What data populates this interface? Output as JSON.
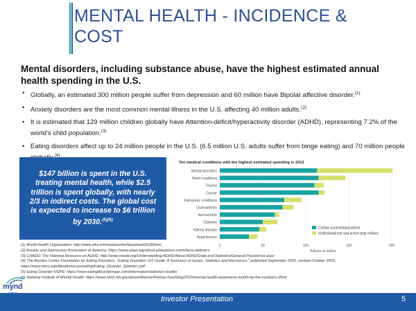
{
  "slide": {
    "title": "MENTAL HEALTH - INCIDENCE & COST",
    "subtitle": "Mental disorders, including substance abuse, have the highest estimated annual health spending in the U.S."
  },
  "bullets": [
    {
      "text": "Globally, an estimated 300 million people suffer from depression and 60 million have Bipolar affective disorder.",
      "ref": "(1)"
    },
    {
      "text": "Anxiety disorders are the most common mental illness in the U.S. affecting 40 million adults.",
      "ref": "(2)"
    },
    {
      "text": "It is estimated that 129 million children globally have Attention-deficit/hyperactivity disorder (ADHD), representing 7.2% of the world’s child population.",
      "ref": "(3)"
    },
    {
      "text": "Eating disorders affect up to 24 million people in the U.S. (6.5 million U.S. adults suffer from binge eating) and 70 million people globally.",
      "ref": "(4)"
    }
  ],
  "callout": {
    "text": "$147 billion is spent in the U.S. treating mental health, while $2.5 trillion is spent globally, with nearly 2/3 in indirect costs.  The global cost is expected to increase to $6 trillion by 2030.",
    "ref": "(5)(6)"
  },
  "footnotes": [
    "(1)  World Health Organization: http://www.who.int/mediacentre/factsheets/fs396/en/",
    "(2)  Anxiety and Depression Association of America: https://www.adaa.org/about-adaa/press-room/facts-statistics",
    "(3)  CHADD: The National Resource on ADHD. http://www.chadd.org/Understanding-ADHD/About-ADHD/Data-and-Statistics/General-Prevalence.aspx",
    "(4)  The Renfew Center Foundation for Eating Disorders, \"Eating Disorders 101 Guide: A Summary of Issues, Statistics and Resources,\" published September 2002, revised October 2003.",
    "       https://www.nbsu.edu/fileadmin/counseling/Eating_Disorder_Statistics.pdf",
    "(5)  Eating Disorder HOPE: https://www.eatingdisorderhope.com/information/statistics-studies",
    "(6)  National Institute of Mental Health: https://www.nimh.nih.gov/about/director/thomas-insel/blog/2015/mental-health-awareness-month-by-the-numbers.shtml"
  ],
  "footer": {
    "label": "Investor Presentation",
    "page": "5"
  },
  "logo": {
    "name": "mynd",
    "tagline": "analytics"
  },
  "colors": {
    "title": "#2a4f93",
    "accent_blue": "#1f5aa6",
    "teal": "#1aa3a3",
    "lime": "#d6e06a"
  },
  "chart_data": {
    "type": "bar",
    "orientation": "horizontal",
    "stacked": true,
    "title": "Ten medical conditions with the highest estimated spending in 2013",
    "xlabel": "Billions of dollars",
    "xlim": [
      0,
      200
    ],
    "xticks": [
      0,
      50,
      100,
      150,
      200
    ],
    "categories": [
      "Mental disorders",
      "Heart conditions",
      "Trauma",
      "Cancer",
      "Pulmonary conditions",
      "Osteoarthritis",
      "Normal birth",
      "Diabetes",
      "Kidney disease",
      "Hypertension"
    ],
    "series": [
      {
        "name": "Civilian noninstitutionalized",
        "color": "#1aa3a3",
        "values": [
          113,
          115,
          110,
          115,
          75,
          73,
          64,
          50,
          46,
          34
        ]
      },
      {
        "name": "Institutionalized and active-duty military",
        "color": "#d6e06a",
        "values": [
          88,
          31,
          11,
          7,
          20,
          13,
          5,
          17,
          8,
          10
        ]
      }
    ],
    "legend_position": "bottom-right"
  }
}
